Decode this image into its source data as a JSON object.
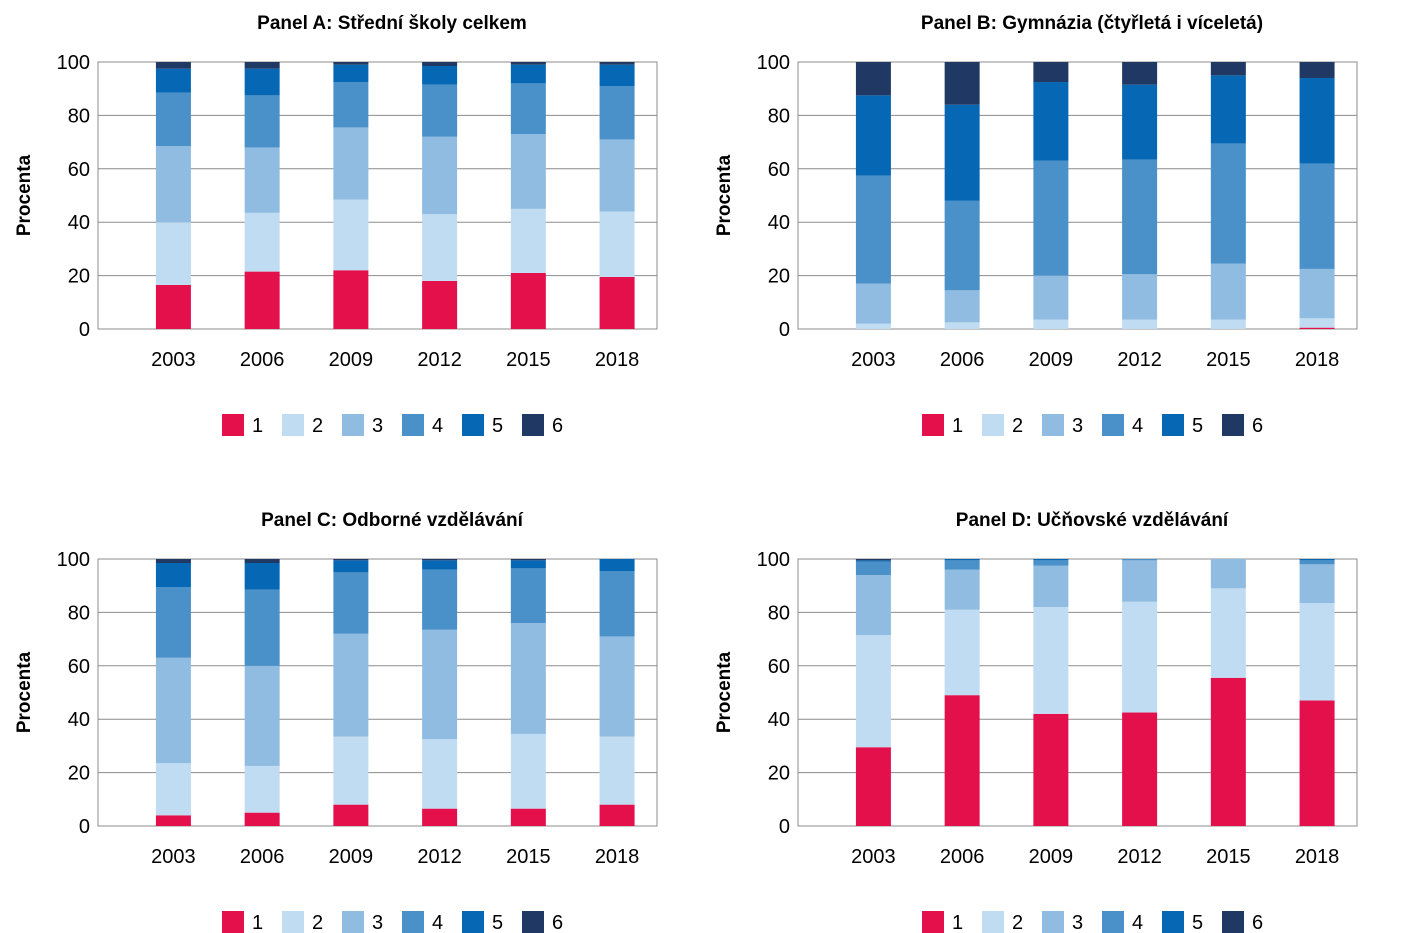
{
  "levels": [
    "1",
    "2",
    "3",
    "4",
    "5",
    "6"
  ],
  "colors": [
    "#e3104c",
    "#c0dcf2",
    "#8fbce0",
    "#4a90c9",
    "#0668b4",
    "#203864"
  ],
  "chart_data": [
    {
      "type": "bar",
      "stacked": true,
      "title": "Panel A: Střední školy celkem",
      "ylabel": "Procenta",
      "ylim": [
        0,
        100
      ],
      "yticks": [
        0,
        20,
        40,
        60,
        80,
        100
      ],
      "grid": true,
      "legend": "bottom",
      "categories": [
        "2003",
        "2006",
        "2009",
        "2012",
        "2015",
        "2018"
      ],
      "series": [
        {
          "name": "1",
          "values": [
            16.5,
            21.5,
            22,
            18,
            21,
            19.5
          ]
        },
        {
          "name": "2",
          "values": [
            23.5,
            22,
            26.5,
            25,
            24,
            24.5
          ]
        },
        {
          "name": "3",
          "values": [
            28.5,
            24.5,
            27,
            29,
            28,
            27
          ]
        },
        {
          "name": "4",
          "values": [
            20,
            19.5,
            17,
            19.5,
            19,
            20
          ]
        },
        {
          "name": "5",
          "values": [
            9,
            10,
            6.5,
            7,
            7,
            8
          ]
        },
        {
          "name": "6",
          "values": [
            2.5,
            2.5,
            1,
            1.5,
            1,
            1
          ]
        }
      ]
    },
    {
      "type": "bar",
      "stacked": true,
      "title": "Panel B: Gymnázia (čtyřletá i víceletá)",
      "ylabel": "Procenta",
      "ylim": [
        0,
        100
      ],
      "yticks": [
        0,
        20,
        40,
        60,
        80,
        100
      ],
      "grid": true,
      "legend": "bottom",
      "categories": [
        "2003",
        "2006",
        "2009",
        "2012",
        "2015",
        "2018"
      ],
      "series": [
        {
          "name": "1",
          "values": [
            0,
            0,
            0,
            0,
            0,
            0.5
          ]
        },
        {
          "name": "2",
          "values": [
            2,
            2.5,
            3.5,
            3.5,
            3.5,
            3.5
          ]
        },
        {
          "name": "3",
          "values": [
            15,
            12,
            16.5,
            17,
            21,
            18.5
          ]
        },
        {
          "name": "4",
          "values": [
            40.5,
            33.5,
            43,
            43,
            45,
            39.5
          ]
        },
        {
          "name": "5",
          "values": [
            30,
            36,
            29.5,
            28,
            25.5,
            32
          ]
        },
        {
          "name": "6",
          "values": [
            12.5,
            16,
            7.5,
            8.5,
            5,
            6
          ]
        }
      ]
    },
    {
      "type": "bar",
      "stacked": true,
      "title": "Panel C:  Odborné vzdělávání",
      "ylabel": "Procenta",
      "ylim": [
        0,
        100
      ],
      "yticks": [
        0,
        20,
        40,
        60,
        80,
        100
      ],
      "grid": true,
      "legend": "bottom",
      "categories": [
        "2003",
        "2006",
        "2009",
        "2012",
        "2015",
        "2018"
      ],
      "series": [
        {
          "name": "1",
          "values": [
            4,
            5,
            8,
            6.5,
            6.5,
            8
          ]
        },
        {
          "name": "2",
          "values": [
            19.5,
            17.5,
            25.5,
            26,
            28,
            25.5
          ]
        },
        {
          "name": "3",
          "values": [
            39.5,
            37.5,
            38.5,
            41,
            41.5,
            37.5
          ]
        },
        {
          "name": "4",
          "values": [
            26.5,
            28.5,
            23,
            22.5,
            20.5,
            24.5
          ]
        },
        {
          "name": "5",
          "values": [
            9,
            10,
            4.5,
            3.5,
            3,
            4.5
          ]
        },
        {
          "name": "6",
          "values": [
            1.5,
            1.5,
            0.5,
            0.5,
            0.5,
            0
          ]
        }
      ]
    },
    {
      "type": "bar",
      "stacked": true,
      "title": "Panel D: Učňovské vzdělávání",
      "ylabel": "Procenta",
      "ylim": [
        0,
        100
      ],
      "yticks": [
        0,
        20,
        40,
        60,
        80,
        100
      ],
      "grid": true,
      "legend": "bottom",
      "categories": [
        "2003",
        "2006",
        "2009",
        "2012",
        "2015",
        "2018"
      ],
      "series": [
        {
          "name": "1",
          "values": [
            29.5,
            49,
            42,
            42.5,
            55.5,
            47
          ]
        },
        {
          "name": "2",
          "values": [
            42,
            32,
            40,
            41.5,
            33.5,
            36.5
          ]
        },
        {
          "name": "3",
          "values": [
            22.5,
            15,
            15.5,
            15.5,
            11,
            14.5
          ]
        },
        {
          "name": "4",
          "values": [
            5,
            3.5,
            2,
            0.5,
            0,
            1.5
          ]
        },
        {
          "name": "5",
          "values": [
            0.5,
            0.5,
            0.5,
            0,
            0,
            0.5
          ]
        },
        {
          "name": "6",
          "values": [
            0.5,
            0,
            0,
            0,
            0,
            0
          ]
        }
      ]
    }
  ]
}
